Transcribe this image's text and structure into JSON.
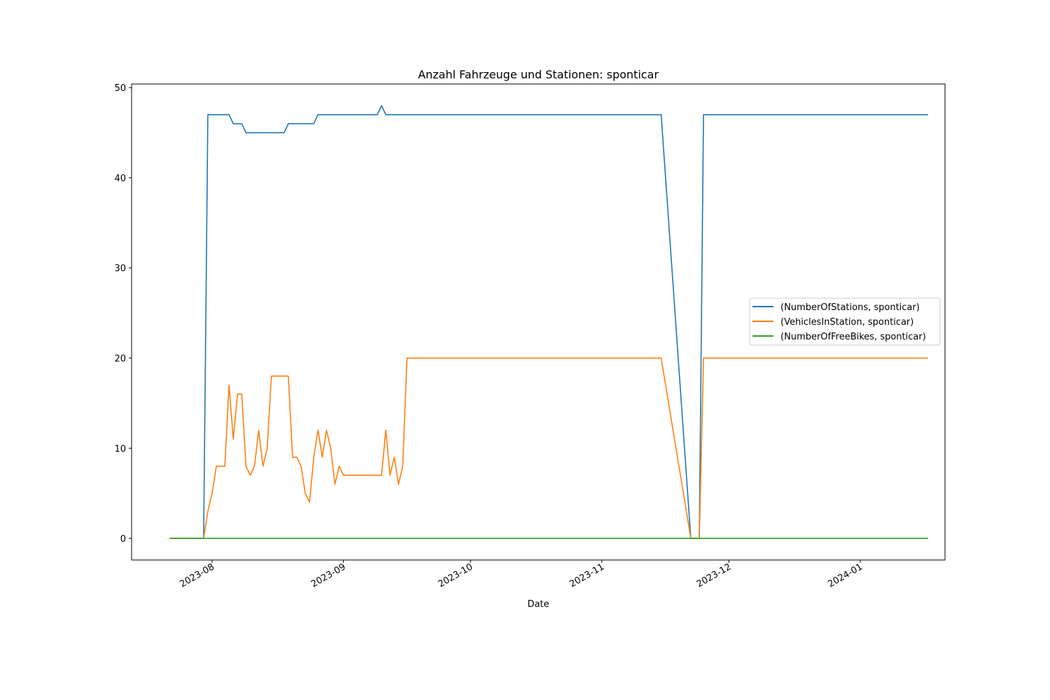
{
  "chart_data": {
    "type": "line",
    "title": "Anzahl Fahrzeuge und Stationen: sponticar",
    "xlabel": "Date",
    "ylabel": "",
    "x_type": "date",
    "xlim": [
      "2023-07-13",
      "2024-01-21"
    ],
    "ylim": [
      -2.4,
      50.4
    ],
    "yticks": [
      0,
      10,
      20,
      30,
      40,
      50
    ],
    "xticks": [
      "2023-08",
      "2023-09",
      "2023-10",
      "2023-11",
      "2023-12",
      "2024-01"
    ],
    "xtick_dates": [
      "2023-08-01",
      "2023-09-01",
      "2023-10-01",
      "2023-11-01",
      "2023-12-01",
      "2024-01-01"
    ],
    "grid": false,
    "legend_position": "center-right",
    "series": [
      {
        "name": "(NumberOfStations, sponticar)",
        "color": "#1f77b4",
        "points": [
          [
            "2023-07-22",
            0
          ],
          [
            "2023-07-30",
            0
          ],
          [
            "2023-07-31",
            47
          ],
          [
            "2023-08-01",
            47
          ],
          [
            "2023-08-02",
            47
          ],
          [
            "2023-08-03",
            47
          ],
          [
            "2023-08-04",
            47
          ],
          [
            "2023-08-05",
            47
          ],
          [
            "2023-08-06",
            46
          ],
          [
            "2023-08-07",
            46
          ],
          [
            "2023-08-08",
            46
          ],
          [
            "2023-08-09",
            45
          ],
          [
            "2023-08-10",
            45
          ],
          [
            "2023-08-11",
            45
          ],
          [
            "2023-08-12",
            45
          ],
          [
            "2023-08-13",
            45
          ],
          [
            "2023-08-14",
            45
          ],
          [
            "2023-08-15",
            45
          ],
          [
            "2023-08-16",
            45
          ],
          [
            "2023-08-17",
            45
          ],
          [
            "2023-08-18",
            45
          ],
          [
            "2023-08-19",
            46
          ],
          [
            "2023-08-20",
            46
          ],
          [
            "2023-08-21",
            46
          ],
          [
            "2023-08-22",
            46
          ],
          [
            "2023-08-23",
            46
          ],
          [
            "2023-08-24",
            46
          ],
          [
            "2023-08-25",
            46
          ],
          [
            "2023-08-26",
            47
          ],
          [
            "2023-08-27",
            47
          ],
          [
            "2023-09-01",
            47
          ],
          [
            "2023-09-09",
            47
          ],
          [
            "2023-09-10",
            48
          ],
          [
            "2023-09-11",
            47
          ],
          [
            "2023-09-20",
            47
          ],
          [
            "2023-10-01",
            47
          ],
          [
            "2023-10-15",
            47
          ],
          [
            "2023-11-01",
            47
          ],
          [
            "2023-11-15",
            47
          ],
          [
            "2023-11-22",
            0
          ],
          [
            "2023-11-24",
            0
          ],
          [
            "2023-11-25",
            47
          ],
          [
            "2023-12-01",
            47
          ],
          [
            "2023-12-15",
            47
          ],
          [
            "2024-01-01",
            47
          ],
          [
            "2024-01-17",
            47
          ]
        ]
      },
      {
        "name": "(VehiclesInStation, sponticar)",
        "color": "#ff7f0e",
        "points": [
          [
            "2023-07-22",
            0
          ],
          [
            "2023-07-30",
            0
          ],
          [
            "2023-07-31",
            3
          ],
          [
            "2023-08-01",
            5
          ],
          [
            "2023-08-02",
            8
          ],
          [
            "2023-08-03",
            8
          ],
          [
            "2023-08-04",
            8
          ],
          [
            "2023-08-05",
            17
          ],
          [
            "2023-08-06",
            11
          ],
          [
            "2023-08-07",
            16
          ],
          [
            "2023-08-08",
            16
          ],
          [
            "2023-08-09",
            8
          ],
          [
            "2023-08-10",
            7
          ],
          [
            "2023-08-11",
            8
          ],
          [
            "2023-08-12",
            12
          ],
          [
            "2023-08-13",
            8
          ],
          [
            "2023-08-14",
            10
          ],
          [
            "2023-08-15",
            18
          ],
          [
            "2023-08-16",
            18
          ],
          [
            "2023-08-17",
            18
          ],
          [
            "2023-08-18",
            18
          ],
          [
            "2023-08-19",
            18
          ],
          [
            "2023-08-20",
            9
          ],
          [
            "2023-08-21",
            9
          ],
          [
            "2023-08-22",
            8
          ],
          [
            "2023-08-23",
            5
          ],
          [
            "2023-08-24",
            4
          ],
          [
            "2023-08-25",
            9
          ],
          [
            "2023-08-26",
            12
          ],
          [
            "2023-08-27",
            9
          ],
          [
            "2023-08-28",
            12
          ],
          [
            "2023-08-29",
            10
          ],
          [
            "2023-08-30",
            6
          ],
          [
            "2023-08-31",
            8
          ],
          [
            "2023-09-01",
            7
          ],
          [
            "2023-09-02",
            7
          ],
          [
            "2023-09-03",
            7
          ],
          [
            "2023-09-04",
            7
          ],
          [
            "2023-09-05",
            7
          ],
          [
            "2023-09-06",
            7
          ],
          [
            "2023-09-07",
            7
          ],
          [
            "2023-09-08",
            7
          ],
          [
            "2023-09-09",
            7
          ],
          [
            "2023-09-10",
            7
          ],
          [
            "2023-09-11",
            12
          ],
          [
            "2023-09-12",
            7
          ],
          [
            "2023-09-13",
            9
          ],
          [
            "2023-09-14",
            6
          ],
          [
            "2023-09-15",
            8
          ],
          [
            "2023-09-16",
            20
          ],
          [
            "2023-10-01",
            20
          ],
          [
            "2023-11-01",
            20
          ],
          [
            "2023-11-15",
            20
          ],
          [
            "2023-11-22",
            0
          ],
          [
            "2023-11-24",
            0
          ],
          [
            "2023-11-25",
            20
          ],
          [
            "2023-12-01",
            20
          ],
          [
            "2024-01-01",
            20
          ],
          [
            "2024-01-17",
            20
          ]
        ]
      },
      {
        "name": "(NumberOfFreeBikes, sponticar)",
        "color": "#2ca02c",
        "points": [
          [
            "2023-07-22",
            0
          ],
          [
            "2024-01-17",
            0
          ]
        ]
      }
    ]
  }
}
